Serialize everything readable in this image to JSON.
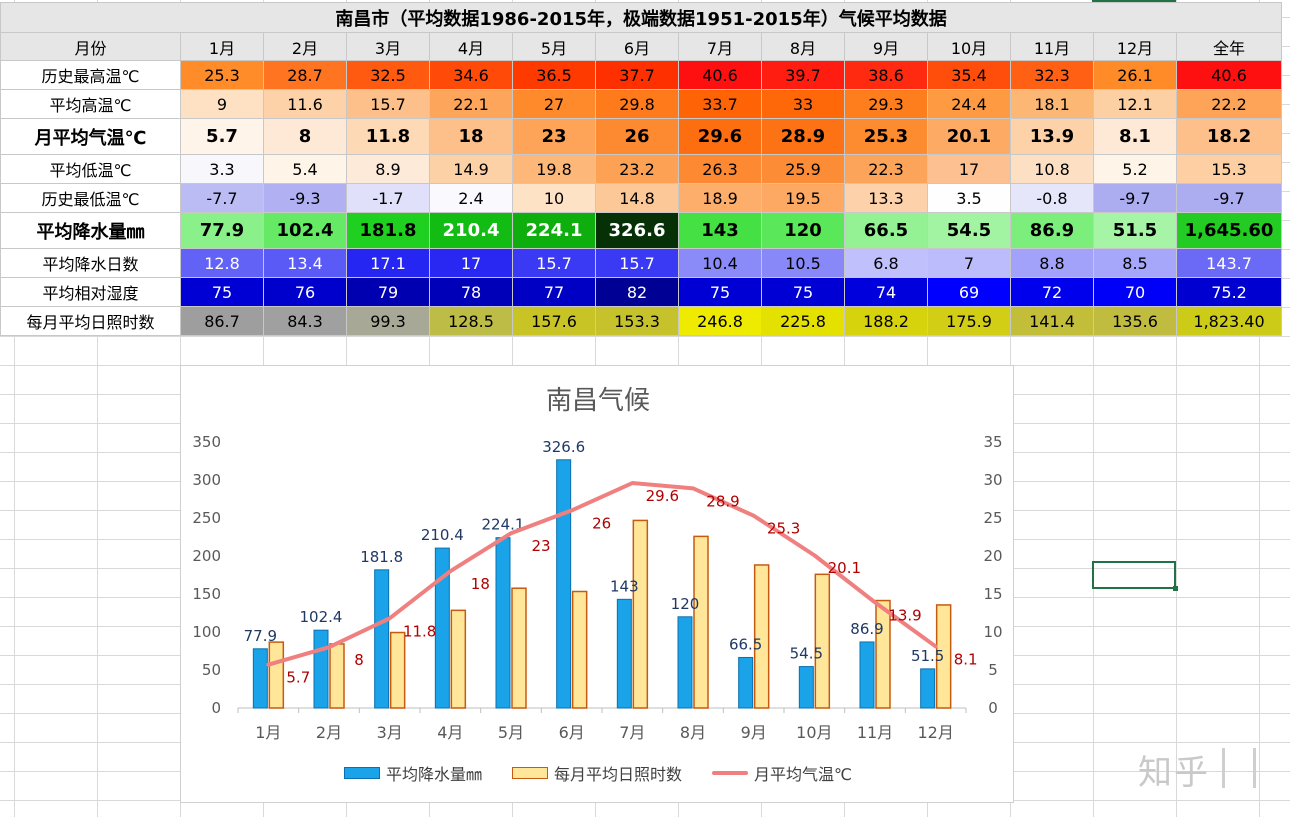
{
  "table": {
    "title": "南昌市（平均数据1986-2015年，极端数据1951-2015年）气候平均数据",
    "header_label": "月份",
    "columns": [
      "1月",
      "2月",
      "3月",
      "4月",
      "5月",
      "6月",
      "7月",
      "8月",
      "9月",
      "10月",
      "11月",
      "12月",
      "全年"
    ],
    "rows": [
      {
        "label": "历史最高温℃",
        "style": "n",
        "values": [
          "25.3",
          "28.7",
          "32.5",
          "34.6",
          "36.5",
          "37.7",
          "40.6",
          "39.7",
          "38.6",
          "35.4",
          "32.3",
          "26.1",
          "40.6"
        ],
        "colors": [
          "#ff8c28",
          "#ff7420",
          "#ff5a10",
          "#ff4a08",
          "#ff3a00",
          "#ff3000",
          "#ff1010",
          "#ff1c10",
          "#ff2a10",
          "#ff4e0c",
          "#ff6014",
          "#ff8a28",
          "#ff1010"
        ]
      },
      {
        "label": "平均高温℃",
        "style": "n",
        "values": [
          "9",
          "11.6",
          "15.7",
          "22.1",
          "27",
          "29.8",
          "33.7",
          "33",
          "29.3",
          "24.4",
          "18.1",
          "12.1",
          "22.2"
        ],
        "colors": [
          "#fde1c2",
          "#fdd2a8",
          "#fdc08a",
          "#fda55a",
          "#fe8a2c",
          "#fe7a1a",
          "#fe6406",
          "#fe6808",
          "#fe7e1e",
          "#fe9a42",
          "#fdb775",
          "#fdd0a4",
          "#fda458"
        ]
      },
      {
        "label": "月平均气温℃",
        "style": "bold",
        "values": [
          "5.7",
          "8",
          "11.8",
          "18",
          "23",
          "26",
          "29.6",
          "28.9",
          "25.3",
          "20.1",
          "13.9",
          "8.1",
          "18.2"
        ],
        "colors": [
          "#fff4ea",
          "#fee9d6",
          "#fdd9b6",
          "#fdc08a",
          "#fda458",
          "#fd8a30",
          "#fd6e10",
          "#fd7214",
          "#fd8c30",
          "#fdaa64",
          "#fdd2a8",
          "#fee9d6",
          "#fdc08a"
        ]
      },
      {
        "label": "平均低温℃",
        "style": "n",
        "values": [
          "3.3",
          "5.4",
          "8.9",
          "14.9",
          "19.8",
          "23.2",
          "26.3",
          "25.9",
          "22.3",
          "17",
          "10.8",
          "5.2",
          "15.3"
        ],
        "colors": [
          "#f8f8fc",
          "#fff4e8",
          "#feead8",
          "#fdd1a6",
          "#fdb879",
          "#fda155",
          "#fd8a33",
          "#fd8c36",
          "#fda45b",
          "#fdc090",
          "#fde0c4",
          "#fff4e8",
          "#fdcfa2"
        ]
      },
      {
        "label": "历史最低温℃",
        "style": "n",
        "values": [
          "-7.7",
          "-9.3",
          "-1.7",
          "2.4",
          "10",
          "14.8",
          "18.9",
          "19.5",
          "13.3",
          "3.5",
          "-0.8",
          "-9.7",
          "-9.7"
        ],
        "colors": [
          "#bcbcf4",
          "#b0b0f2",
          "#e0e0fa",
          "#fafafe",
          "#fde2c6",
          "#fdc898",
          "#fdae6a",
          "#fda964",
          "#fdd2aa",
          "#fefeff",
          "#e6e6fb",
          "#acacf0",
          "#acacf0"
        ]
      },
      {
        "label": "平均降水量㎜",
        "style": "bold",
        "values": [
          "77.9",
          "102.4",
          "181.8",
          "210.4",
          "224.1",
          "326.6",
          "143",
          "120",
          "66.5",
          "54.5",
          "86.9",
          "51.5",
          "1,645.60"
        ],
        "colors": [
          "#8af08a",
          "#66ea66",
          "#20d020",
          "#12bc12",
          "#0eae0e",
          "#063006",
          "#44e044",
          "#5ae85a",
          "#94f294",
          "#a2f4a2",
          "#7cee7c",
          "#a6f5a6",
          "#22cc22"
        ],
        "textcolors": [
          "#000",
          "#000",
          "#000",
          "#fff",
          "#fff",
          "#fff",
          "#000",
          "#000",
          "#000",
          "#000",
          "#000",
          "#000",
          "#000"
        ]
      },
      {
        "label": "平均降水日数",
        "style": "n",
        "values": [
          "12.8",
          "13.4",
          "17.1",
          "17",
          "15.7",
          "15.7",
          "10.4",
          "10.5",
          "6.8",
          "7",
          "8.8",
          "8.5",
          "143.7"
        ],
        "colors": [
          "#6262f6",
          "#5a5af6",
          "#2626f2",
          "#2828f2",
          "#3a3af4",
          "#3a3af4",
          "#8a8af8",
          "#8888f8",
          "#c0c0fc",
          "#bcbcfc",
          "#a2a2fa",
          "#a6a6fa",
          "#6a6af6"
        ],
        "textcolors": [
          "#fff",
          "#fff",
          "#fff",
          "#fff",
          "#fff",
          "#fff",
          "#000",
          "#000",
          "#000",
          "#000",
          "#000",
          "#000",
          "#fff"
        ]
      },
      {
        "label": "平均相对湿度",
        "style": "n",
        "values": [
          "75",
          "76",
          "79",
          "78",
          "77",
          "82",
          "75",
          "75",
          "74",
          "69",
          "72",
          "70",
          "75.2"
        ],
        "colors": [
          "#0000d4",
          "#0000cc",
          "#0000b0",
          "#0000b8",
          "#0000c4",
          "#000094",
          "#0000d4",
          "#0000d4",
          "#0000dc",
          "#0000ff",
          "#0000ec",
          "#0000f8",
          "#0000d0"
        ],
        "textcolors": [
          "#fff",
          "#fff",
          "#fff",
          "#fff",
          "#fff",
          "#fff",
          "#fff",
          "#fff",
          "#fff",
          "#fff",
          "#fff",
          "#fff",
          "#fff"
        ]
      },
      {
        "label": "每月平均日照时数",
        "style": "n",
        "values": [
          "86.7",
          "84.3",
          "99.3",
          "128.5",
          "157.6",
          "153.3",
          "246.8",
          "225.8",
          "188.2",
          "175.9",
          "141.4",
          "135.6",
          "1,823.40"
        ],
        "colors": [
          "#9e9e9e",
          "#a0a0a0",
          "#a8a896",
          "#bcbc46",
          "#c8c426",
          "#c6c22c",
          "#eeea00",
          "#e4e000",
          "#d6d20c",
          "#d2ce16",
          "#c2be3a",
          "#c0bc40",
          "#cccc18"
        ]
      }
    ]
  },
  "chart_data": {
    "type": "bar",
    "title": "南昌气候",
    "categories": [
      "1月",
      "2月",
      "3月",
      "4月",
      "5月",
      "6月",
      "7月",
      "8月",
      "9月",
      "10月",
      "11月",
      "12月"
    ],
    "series": [
      {
        "name": "平均降水量㎜",
        "kind": "bar",
        "axis": "left",
        "color": "#1aa3e8",
        "stroke": "#0a70b0",
        "values": [
          77.9,
          102.4,
          181.8,
          210.4,
          224.1,
          326.6,
          143,
          120,
          66.5,
          54.5,
          86.9,
          51.5
        ],
        "labels": [
          "77.9",
          "102.4",
          "181.8",
          "210.4",
          "224.1",
          "326.6",
          "143",
          "120",
          "66.5",
          "54.5",
          "86.9",
          "51.5"
        ]
      },
      {
        "name": "每月平均日照时数",
        "kind": "bar",
        "axis": "left",
        "color": "#ffe699",
        "stroke": "#c55a11",
        "values": [
          86.7,
          84.3,
          99.3,
          128.5,
          157.6,
          153.3,
          246.8,
          225.8,
          188.2,
          175.9,
          141.4,
          135.6
        ]
      },
      {
        "name": "月平均气温℃",
        "kind": "line",
        "axis": "right",
        "color": "#f08080",
        "values": [
          5.7,
          8,
          11.8,
          18,
          23,
          26,
          29.6,
          28.9,
          25.3,
          20.1,
          13.9,
          8.1
        ],
        "labels": [
          "5.7",
          "8",
          "11.8",
          "18",
          "23",
          "26",
          "29.6",
          "28.9",
          "25.3",
          "20.1",
          "13.9",
          "8.1"
        ]
      }
    ],
    "ylim_left": [
      0,
      350
    ],
    "yticks_left": [
      "0",
      "50",
      "100",
      "150",
      "200",
      "250",
      "300",
      "350"
    ],
    "ylim_right": [
      0,
      35
    ],
    "yticks_right": [
      "0",
      "5",
      "10",
      "15",
      "20",
      "25",
      "30",
      "35"
    ],
    "legend": "bottom",
    "grid": false
  },
  "watermark": "知乎"
}
